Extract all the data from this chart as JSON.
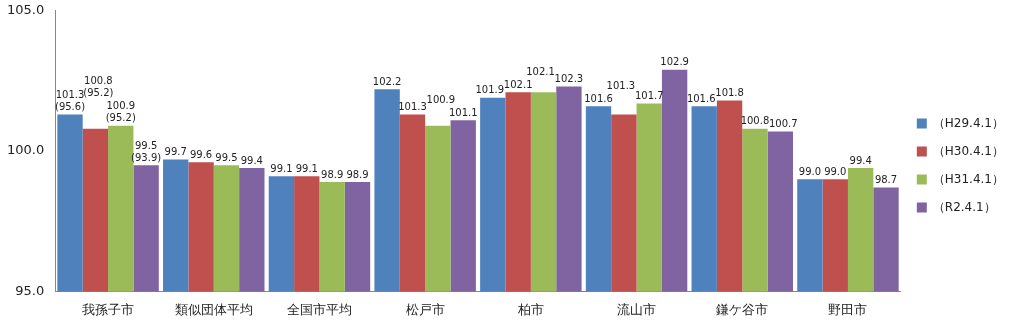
{
  "chart_data": {
    "type": "bar",
    "categories": [
      "我孫子市",
      "類似団体平均",
      "全国市平均",
      "松戸市",
      "柏市",
      "流山市",
      "鎌ケ谷市",
      "野田市"
    ],
    "series": [
      {
        "name": "（H29.4.1）",
        "color": "#4f81bd",
        "values": [
          101.3,
          99.7,
          99.1,
          102.2,
          101.9,
          101.6,
          101.6,
          99.0
        ],
        "value_labels": [
          "101.3\n(95.6)",
          "99.7",
          "99.1",
          "102.2",
          "101.9",
          "101.6",
          "101.6",
          "99.0"
        ]
      },
      {
        "name": "（H30.4.1）",
        "color": "#c0504d",
        "values": [
          100.8,
          99.6,
          99.1,
          101.3,
          102.1,
          101.3,
          101.8,
          99.0
        ],
        "value_labels": [
          "100.8\n(95.2)",
          "99.6",
          "99.1",
          "101.3",
          "102.1",
          "101.3",
          "101.8",
          "99.0"
        ]
      },
      {
        "name": "（H31.4.1）",
        "color": "#9bbb59",
        "values": [
          100.9,
          99.5,
          98.9,
          100.9,
          102.1,
          101.7,
          100.8,
          99.4
        ],
        "value_labels": [
          "100.9\n(95.2)",
          "99.5",
          "98.9",
          "100.9",
          "102.1",
          "101.7",
          "100.8",
          "99.4"
        ]
      },
      {
        "name": "（R2.4.1）",
        "color": "#8064a2",
        "values": [
          99.5,
          99.4,
          98.9,
          101.1,
          102.3,
          102.9,
          100.7,
          98.7
        ],
        "value_labels": [
          "99.5\n(93.9)",
          "99.4",
          "98.9",
          "101.1",
          "102.3",
          "102.9",
          "100.7",
          "98.7"
        ]
      }
    ],
    "ylim": [
      95,
      105
    ],
    "yticks": [
      {
        "value": 95,
        "label": "95.0"
      },
      {
        "value": 100,
        "label": "100.0"
      },
      {
        "value": 105,
        "label": "105.0"
      }
    ],
    "grid": false,
    "legend": "right"
  }
}
